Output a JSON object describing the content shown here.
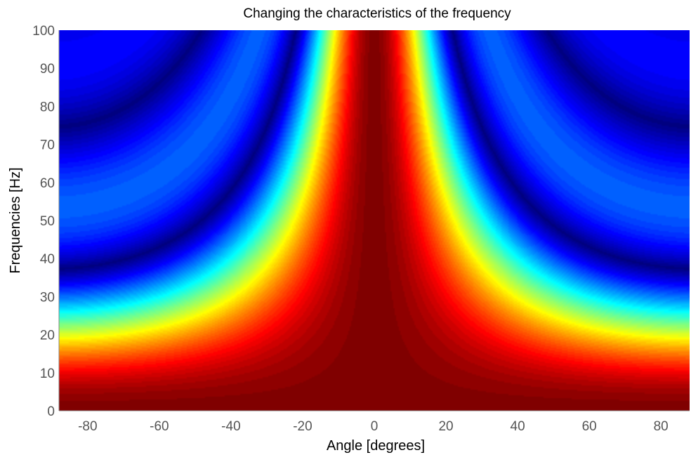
{
  "chart_data": {
    "type": "heatmap",
    "title": "Changing the characteristics of the frequency",
    "xlabel": "Angle [degrees]",
    "ylabel": "Frequencies [Hz]",
    "xlim": [
      -88,
      88
    ],
    "ylim": [
      0,
      100
    ],
    "x_ticks": [
      -80,
      -60,
      -40,
      -20,
      0,
      20,
      40,
      60,
      80
    ],
    "y_ticks": [
      0,
      10,
      20,
      30,
      40,
      50,
      60,
      70,
      80,
      90,
      100
    ],
    "colormap": "jet",
    "value_range": [
      0,
      1
    ],
    "function": "|sinc(f * sin(angle) / 37.3)|",
    "zero_ridges_hz_at_sin_angle_1": [
      37.3,
      74.6
    ],
    "grid": false,
    "colors": {
      "dark_red": "#800000",
      "red": "#ff0000",
      "yellow": "#ffff00",
      "cyan": "#00ffff",
      "blue": "#0070ff",
      "dark_blue": "#00008f",
      "tick_text": "#555555",
      "axis_line": "#888888"
    }
  }
}
